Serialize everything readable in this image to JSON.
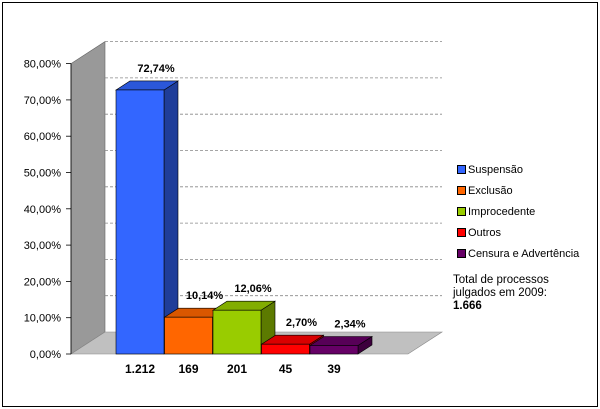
{
  "chart_data": {
    "type": "bar",
    "y_ticks": [
      "0,00%",
      "10,00%",
      "20,00%",
      "30,00%",
      "40,00%",
      "50,00%",
      "60,00%",
      "70,00%",
      "80,00%"
    ],
    "ylim": [
      0,
      80
    ],
    "categories": [
      "1.212",
      "169",
      "201",
      "45",
      "39"
    ],
    "series": [
      {
        "name": "Suspensão",
        "value": 72.74,
        "label": "72,74%",
        "color": "#3366FF"
      },
      {
        "name": "Exclusão",
        "value": 10.14,
        "label": "10,14%",
        "color": "#FF6600"
      },
      {
        "name": "Improcedente",
        "value": 12.06,
        "label": "12,06%",
        "color": "#99CC00"
      },
      {
        "name": "Outros",
        "value": 2.7,
        "label": "2,70%",
        "color": "#FF0000"
      },
      {
        "name": "Censura e Advertência",
        "value": 2.34,
        "label": "2,34%",
        "color": "#660066"
      }
    ],
    "legend_position": "right",
    "grid": true
  },
  "note": {
    "text": "Total de processos julgados em 2009:",
    "value": "1.666"
  }
}
